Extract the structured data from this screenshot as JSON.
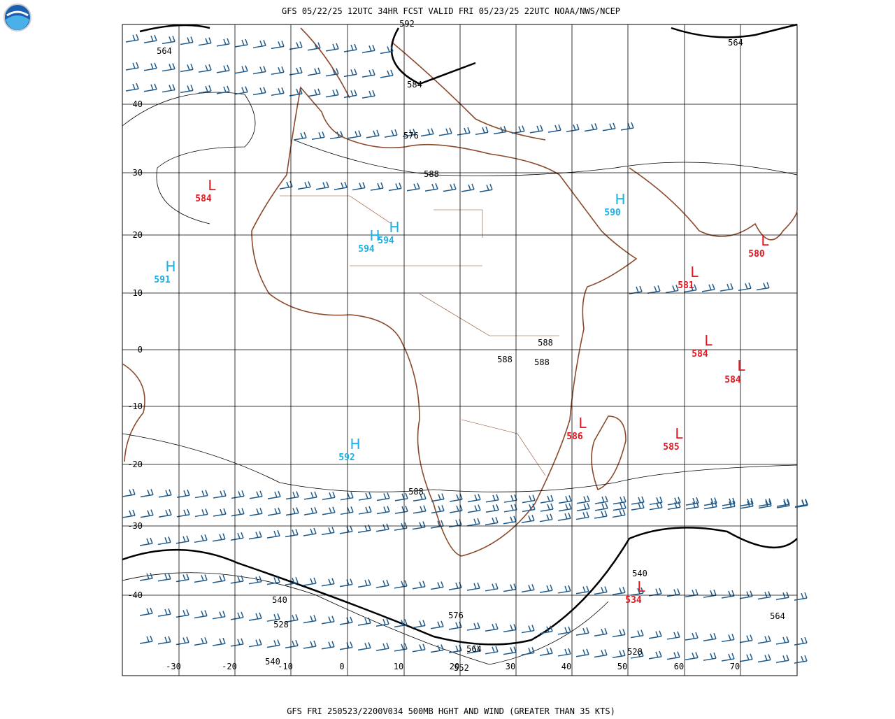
{
  "header": {
    "title": "GFS 05/22/25 12UTC 34HR FCST VALID FRI 05/23/25 22UTC NOAA/NWS/NCEP"
  },
  "footer": {
    "text": "GFS FRI 250523/2200V034 500MB HGHT AND WIND (GREATER THAN 35 KTS)"
  },
  "lat_labels": [
    "40",
    "30",
    "20",
    "10",
    "0",
    "-10",
    "-20",
    "-30",
    "-40"
  ],
  "lon_labels": [
    "-30",
    "-20",
    "-10",
    "0",
    "10",
    "20",
    "30",
    "40",
    "50",
    "60",
    "70"
  ],
  "contour_labels": [
    "592",
    "564",
    "564",
    "584",
    "576",
    "588",
    "588",
    "588",
    "588",
    "588",
    "540",
    "540",
    "528",
    "576",
    "564",
    "552",
    "528",
    "564",
    "540"
  ],
  "centers": [
    {
      "symbol": "L",
      "value": "584"
    },
    {
      "symbol": "H",
      "value": "590"
    },
    {
      "symbol": "H",
      "value": "594"
    },
    {
      "symbol": "H",
      "value": "594"
    },
    {
      "symbol": "H",
      "value": "591"
    },
    {
      "symbol": "L",
      "value": "580"
    },
    {
      "symbol": "L",
      "value": "581"
    },
    {
      "symbol": "L",
      "value": "584"
    },
    {
      "symbol": "L",
      "value": "584"
    },
    {
      "symbol": "L",
      "value": "586"
    },
    {
      "symbol": "L",
      "value": "585"
    },
    {
      "symbol": "H",
      "value": "592"
    },
    {
      "symbol": "L",
      "value": "534"
    }
  ]
}
